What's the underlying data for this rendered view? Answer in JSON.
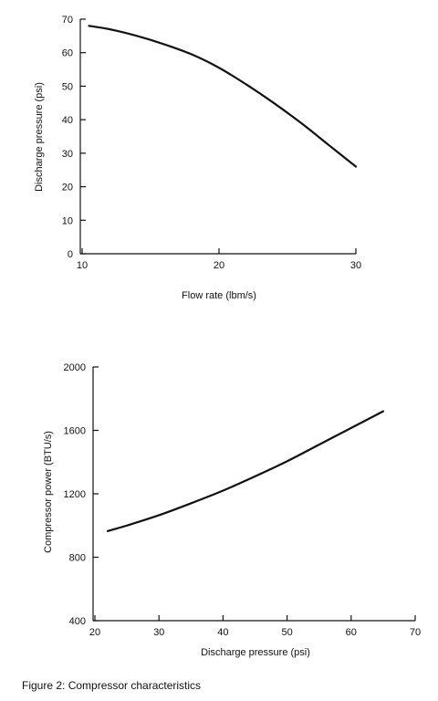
{
  "chart_data": [
    {
      "type": "line",
      "xlabel": "Flow rate (lbm/s)",
      "ylabel": "Discharge pressure (psi)",
      "xlim": [
        10,
        30
      ],
      "ylim": [
        0,
        70
      ],
      "xticks": [
        10,
        20,
        30
      ],
      "yticks": [
        0,
        10,
        20,
        30,
        40,
        50,
        60,
        70
      ],
      "grid": false,
      "x": [
        10.5,
        12,
        14,
        16,
        18,
        20,
        22,
        24,
        26,
        28,
        30
      ],
      "series": [
        {
          "values": [
            68,
            67,
            65,
            62.5,
            59.5,
            55.5,
            50.5,
            45,
            39,
            32.5,
            26
          ]
        }
      ]
    },
    {
      "type": "line",
      "xlabel": "Discharge pressure (psi)",
      "ylabel": "Compressor power (BTU/s)",
      "xlim": [
        20,
        70
      ],
      "ylim": [
        400,
        2000
      ],
      "xticks": [
        20,
        30,
        40,
        50,
        60,
        70
      ],
      "yticks": [
        400,
        800,
        1200,
        1600,
        2000
      ],
      "grid": false,
      "x": [
        22,
        25,
        30,
        35,
        40,
        45,
        50,
        55,
        60,
        65
      ],
      "series": [
        {
          "values": [
            965,
            1000,
            1065,
            1140,
            1220,
            1310,
            1405,
            1510,
            1615,
            1720
          ]
        }
      ]
    }
  ],
  "caption": "Figure 2: Compressor characteristics"
}
